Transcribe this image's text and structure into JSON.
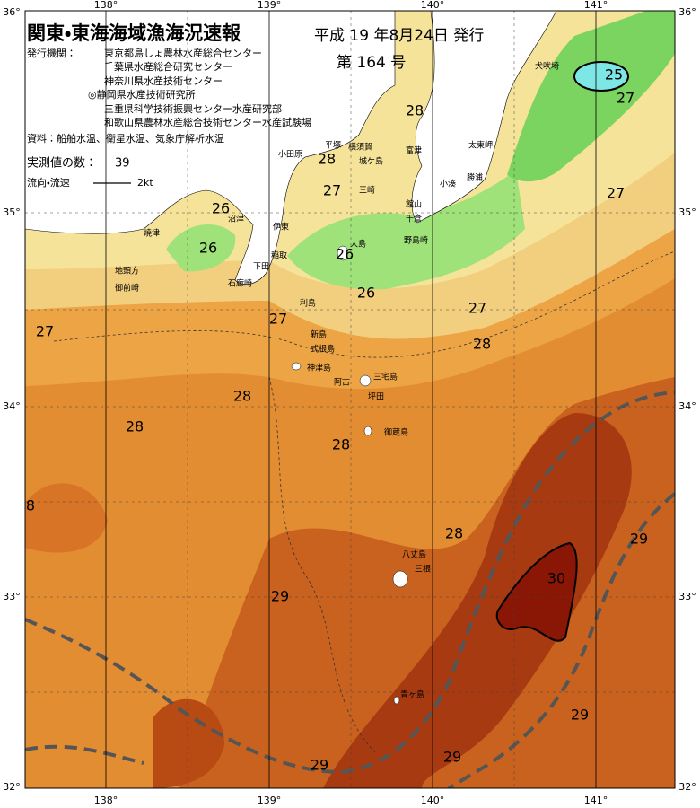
{
  "header": {
    "title": "関東・東海海域漁海況速報",
    "date": "平成 19 年8月24日 発行",
    "issue": "第 164 号"
  },
  "info": {
    "issuer_label": "発行機関：",
    "issuers": [
      "東京都島しょ農林水産総合センター",
      "千葉県水産総合研究センター",
      "神奈川県水産技術センター",
      "◎静岡県水産技術研究所",
      "三重県科学技術振興センター水産研究部",
      "和歌山県農林水産総合技術センター水産試験場"
    ],
    "source": "資料：船舶水温、衛星水温、気象庁解析水温",
    "count_label": "実測値の数：",
    "count": 39,
    "flow_label": "流向・流速",
    "flow_speed": "2kt"
  },
  "axes": {
    "lon_labels": [
      "138°",
      "139°",
      "140°",
      "141°"
    ],
    "lat_labels": [
      "36°",
      "35°",
      "34°",
      "33°",
      "32°"
    ]
  },
  "temperature_labels": [
    25,
    27,
    28,
    28,
    27,
    27,
    26,
    26,
    26,
    26,
    27,
    27,
    27,
    28,
    28,
    28,
    28,
    8,
    28,
    29,
    30,
    29,
    29,
    29,
    29
  ],
  "places": [
    "犬吠埼",
    "太東岬",
    "勝浦",
    "小湊",
    "館山",
    "千倉",
    "野島崎",
    "平塚",
    "横須賀",
    "城ケ島",
    "富津",
    "小田原",
    "三崎",
    "沼津",
    "焼津",
    "伊東",
    "稲取",
    "下田",
    "石廊崎",
    "地頭方",
    "御前崎",
    "大島",
    "利島",
    "新島",
    "式根島",
    "神津島",
    "三宅島",
    "阿古",
    "坪田",
    "御蔵島",
    "八丈島",
    "三根",
    "青ヶ島"
  ]
}
